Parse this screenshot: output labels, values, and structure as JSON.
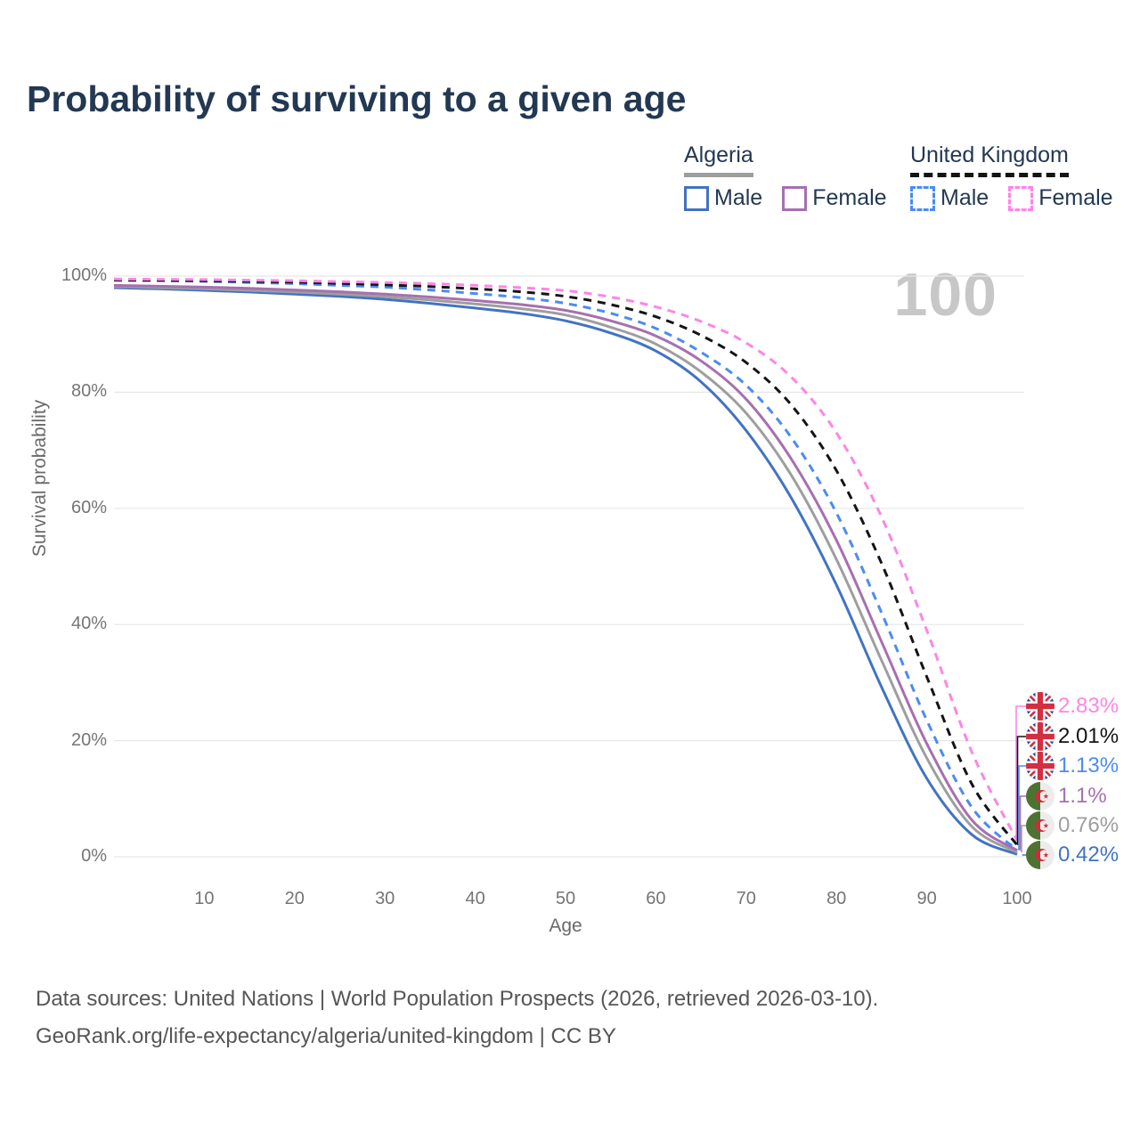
{
  "title": "Probability of surviving to a given age",
  "watermark": "100",
  "legend": {
    "groups": [
      {
        "label": "Algeria",
        "underline_color": "#9e9e9e",
        "underline_style": "solid",
        "items": [
          {
            "label": "Male",
            "color": "#4273c2",
            "dashed": false
          },
          {
            "label": "Female",
            "color": "#a76fb0",
            "dashed": false
          }
        ]
      },
      {
        "label": "United Kingdom",
        "underline_color": "#141414",
        "underline_style": "dashed",
        "items": [
          {
            "label": "Male",
            "color": "#4b8bf2",
            "dashed": true
          },
          {
            "label": "Female",
            "color": "#fb86e6",
            "dashed": true
          }
        ]
      }
    ]
  },
  "chart_data": {
    "type": "line",
    "title": "Probability of surviving to a given age",
    "xlabel": "Age",
    "ylabel": "Survival probability",
    "xlim": [
      0,
      101
    ],
    "ylim": [
      0,
      100
    ],
    "grid": "horizontal",
    "gridline_color": "#e7e7e7",
    "x_ticks": [
      10,
      20,
      30,
      40,
      50,
      60,
      70,
      80,
      90,
      100
    ],
    "y_tick_values": [
      0,
      20,
      40,
      60,
      80,
      100
    ],
    "y_tick_labels": [
      "0%",
      "20%",
      "40%",
      "60%",
      "80%",
      "100%"
    ],
    "x": [
      0,
      5,
      10,
      15,
      20,
      25,
      30,
      35,
      40,
      45,
      50,
      55,
      60,
      65,
      70,
      75,
      80,
      85,
      90,
      95,
      100
    ],
    "series": [
      {
        "name": "United Kingdom Female",
        "country": "United Kingdom",
        "sex": "Female",
        "color": "#fb86e6",
        "dashed": true,
        "flag": "uk",
        "end_label": "2.83%",
        "values": [
          99.5,
          99.45,
          99.4,
          99.3,
          99.2,
          99.05,
          98.9,
          98.7,
          98.4,
          98.0,
          97.5,
          96.4,
          94.7,
          92.2,
          88.5,
          82.6,
          73.0,
          58.5,
          39.0,
          18.0,
          2.83
        ]
      },
      {
        "name": "United Kingdom Both sexes",
        "country": "United Kingdom",
        "sex": "Both",
        "color": "#141414",
        "dashed": true,
        "flag": "uk",
        "end_label": "2.01%",
        "values": [
          99.35,
          99.3,
          99.2,
          99.1,
          98.95,
          98.75,
          98.5,
          98.2,
          97.8,
          97.3,
          96.5,
          95.1,
          93.0,
          89.8,
          85.1,
          77.8,
          66.5,
          50.5,
          31.0,
          12.5,
          2.01
        ]
      },
      {
        "name": "United Kingdom Male",
        "country": "United Kingdom",
        "sex": "Male",
        "color": "#4b8bf2",
        "dashed": true,
        "flag": "uk",
        "end_label": "1.13%",
        "values": [
          99.25,
          99.2,
          99.1,
          98.9,
          98.7,
          98.4,
          98.1,
          97.6,
          97.0,
          96.3,
          95.3,
          93.6,
          91.0,
          86.9,
          81.2,
          72.2,
          59.2,
          42.0,
          23.5,
          8.5,
          1.13
        ]
      },
      {
        "name": "Algeria Female",
        "country": "Algeria",
        "sex": "Female",
        "color": "#a76fb0",
        "dashed": false,
        "flag": "dz",
        "end_label": "1.1%",
        "values": [
          98.4,
          98.25,
          98.1,
          97.9,
          97.6,
          97.3,
          96.9,
          96.4,
          95.8,
          95.1,
          94.1,
          92.3,
          89.7,
          85.4,
          78.8,
          68.5,
          54.5,
          37.0,
          19.5,
          6.3,
          1.1
        ]
      },
      {
        "name": "Algeria Both sexes",
        "country": "Algeria",
        "sex": "Both",
        "color": "#9e9e9e",
        "dashed": false,
        "flag": "dz",
        "end_label": "0.76%",
        "values": [
          98.2,
          98.0,
          97.8,
          97.55,
          97.25,
          96.9,
          96.45,
          95.9,
          95.2,
          94.4,
          93.3,
          91.2,
          88.3,
          83.5,
          76.4,
          65.7,
          51.2,
          33.8,
          17.0,
          5.2,
          0.76
        ]
      },
      {
        "name": "Algeria Male",
        "country": "Algeria",
        "sex": "Male",
        "color": "#4273c2",
        "dashed": false,
        "flag": "dz",
        "end_label": "0.42%",
        "values": [
          98.0,
          97.8,
          97.55,
          97.25,
          96.9,
          96.5,
          96.0,
          95.3,
          94.5,
          93.6,
          92.3,
          90.2,
          87.1,
          81.8,
          73.4,
          61.8,
          46.8,
          29.2,
          13.5,
          3.8,
          0.42
        ]
      }
    ]
  },
  "footer": {
    "line1": "Data sources: United Nations | World Population Prospects (2026, retrieved 2026-03-10).",
    "line2": "GeoRank.org/life-expectancy/algeria/united-kingdom | CC BY"
  }
}
